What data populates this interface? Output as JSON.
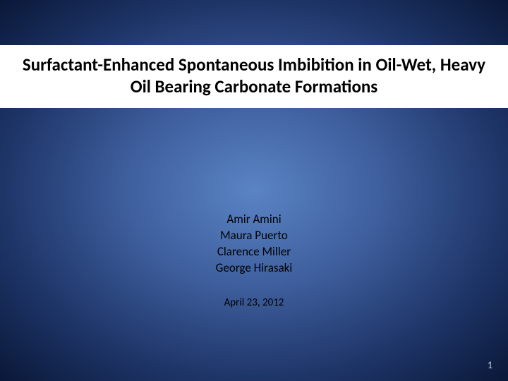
{
  "slide": {
    "background": {
      "type": "radial-gradient",
      "center_color": "#5a84c4",
      "mid_color": "#3f5f9e",
      "outer_color": "#1e3568",
      "edge_color": "#0a1838"
    },
    "title": {
      "text": "Surfactant-Enhanced Spontaneous Imbibition in Oil-Wet, Heavy Oil Bearing Carbonate Formations",
      "fontsize": 25,
      "fontweight": 700,
      "color": "#000000",
      "background_color": "#ffffff"
    },
    "authors": [
      "Amir Amini",
      "Maura Puerto",
      "Clarence Miller",
      "George Hirasaki"
    ],
    "authors_style": {
      "fontsize": 17,
      "color": "#000000"
    },
    "date": {
      "text": "April 23, 2012",
      "fontsize": 15,
      "color": "#000000"
    },
    "page_number": {
      "value": "1",
      "fontsize": 14,
      "color": "#c9d4ea"
    }
  }
}
